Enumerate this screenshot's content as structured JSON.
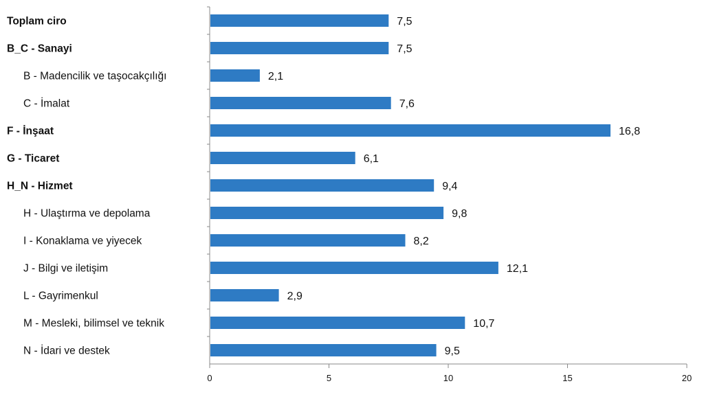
{
  "chart_data": {
    "type": "bar",
    "orientation": "horizontal",
    "categories": [
      "Toplam ciro",
      "B_C - Sanayi",
      "B - Madencilik ve taşocakçılığı",
      "C - İmalat",
      "F - İnşaat",
      "G - Ticaret",
      "H_N - Hizmet",
      "H - Ulaştırma ve depolama",
      "I - Konaklama ve yiyecek",
      "J - Bilgi ve iletişim",
      "L - Gayrimenkul",
      "M - Mesleki, bilimsel ve teknik",
      "N - İdari ve destek"
    ],
    "category_style": [
      "bold",
      "bold",
      "indent",
      "indent",
      "bold",
      "bold",
      "bold",
      "indent",
      "indent",
      "indent",
      "indent",
      "indent",
      "indent"
    ],
    "values": [
      7.5,
      7.5,
      2.1,
      7.6,
      16.8,
      6.1,
      9.4,
      9.8,
      8.2,
      12.1,
      2.9,
      10.7,
      9.5
    ],
    "value_labels": [
      "7,5",
      "7,5",
      "2,1",
      "7,6",
      "16,8",
      "6,1",
      "9,4",
      "9,8",
      "8,2",
      "12,1",
      "2,9",
      "10,7",
      "9,5"
    ],
    "xlim": [
      0,
      20
    ],
    "xticks": [
      0,
      5,
      10,
      15,
      20
    ],
    "xtick_labels": [
      "0",
      "5",
      "10",
      "15",
      "20"
    ],
    "bar_color": "#2E7BC4",
    "axis_color": "#888888",
    "grid": false,
    "legend": "none"
  }
}
